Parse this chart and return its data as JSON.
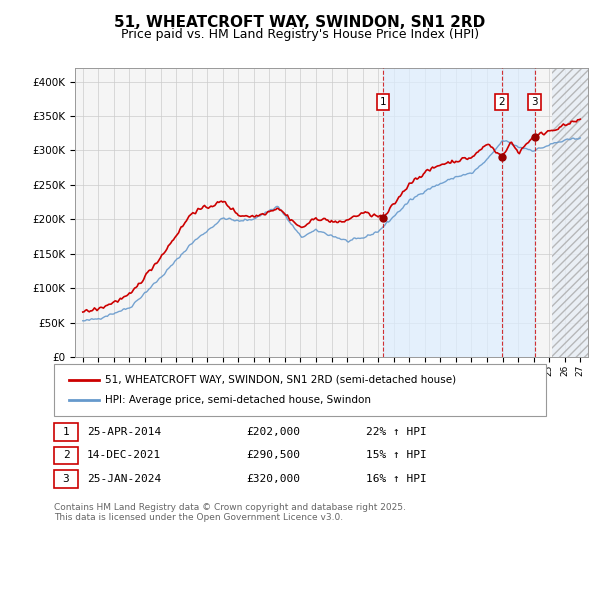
{
  "title": "51, WHEATCROFT WAY, SWINDON, SN1 2RD",
  "subtitle": "Price paid vs. HM Land Registry's House Price Index (HPI)",
  "legend_line1": "51, WHEATCROFT WAY, SWINDON, SN1 2RD (semi-detached house)",
  "legend_line2": "HPI: Average price, semi-detached house, Swindon",
  "footer": "Contains HM Land Registry data © Crown copyright and database right 2025.\nThis data is licensed under the Open Government Licence v3.0.",
  "purchases": [
    {
      "num": 1,
      "date": "25-APR-2014",
      "date_x": 2014.31,
      "price": 202000,
      "pct": "22%",
      "dir": "↑"
    },
    {
      "num": 2,
      "date": "14-DEC-2021",
      "date_x": 2021.96,
      "price": 290500,
      "pct": "15%",
      "dir": "↑"
    },
    {
      "num": 3,
      "date": "25-JAN-2024",
      "date_x": 2024.07,
      "price": 320000,
      "pct": "16%",
      "dir": "↑"
    }
  ],
  "red_color": "#cc0000",
  "blue_color": "#6699cc",
  "shade_color": "#ddeeff",
  "ylim": [
    0,
    420000
  ],
  "xlim_start": 1994.5,
  "xlim_end": 2027.5,
  "bg_color": "#f5f5f5",
  "grid_color": "#cccccc",
  "title_fontsize": 11,
  "subtitle_fontsize": 9.5,
  "hatch_start": 2025.17
}
